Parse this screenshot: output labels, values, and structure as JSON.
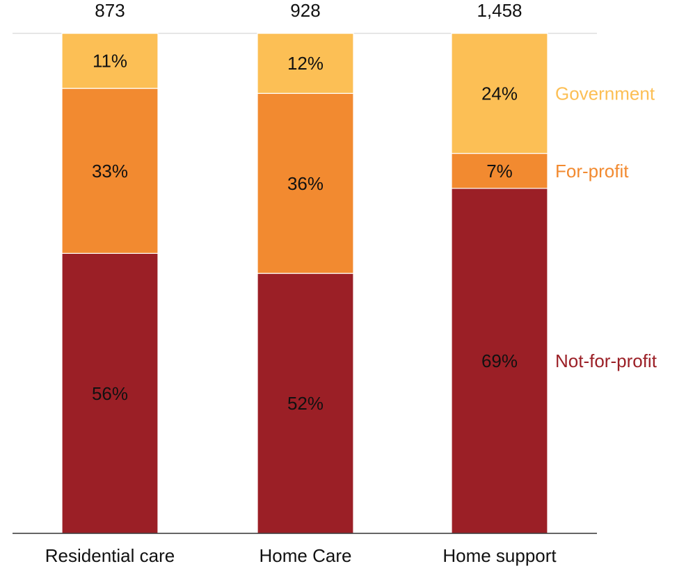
{
  "chart_data": {
    "type": "bar",
    "stacked": true,
    "normalized": true,
    "categories": [
      "Residential care",
      "Home Care",
      "Home support"
    ],
    "totals": [
      "873",
      "928",
      "1,458"
    ],
    "series": [
      {
        "name": "Not-for-profit",
        "color": "#9b1f26",
        "values": [
          56,
          52,
          69
        ],
        "labels": [
          "56%",
          "52%",
          "69%"
        ]
      },
      {
        "name": "For-profit",
        "color": "#f28a30",
        "values": [
          33,
          36,
          7
        ],
        "labels": [
          "33%",
          "36%",
          "7%"
        ]
      },
      {
        "name": "Government",
        "color": "#fcbf55",
        "values": [
          11,
          12,
          24
        ],
        "labels": [
          "11%",
          "12%",
          "24%"
        ]
      }
    ],
    "ylim": [
      0,
      100
    ],
    "grid": false,
    "legend": "right, inline labels"
  }
}
